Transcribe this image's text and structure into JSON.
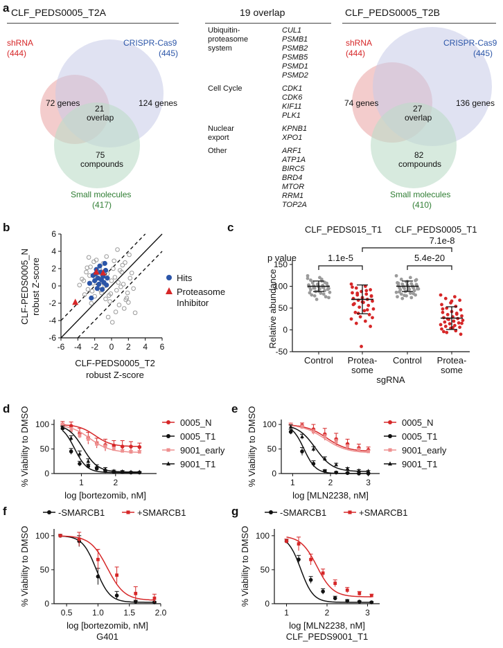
{
  "colors": {
    "red": "#d62728",
    "blue": "#2b55a8",
    "green": "#2e7d32",
    "grey": "#9a9a9a",
    "pink": "#e9a3a3",
    "lilac": "#c6cbe8",
    "mint": "#bcdcc8",
    "lightred": "#ee8f8f",
    "black": "#111111"
  },
  "panel_a": {
    "letter": "a",
    "venn1": {
      "title": "CLF_PEDS0005_T2A",
      "shrna_label": "shRNA",
      "shrna_count": "(444)",
      "crispr_label": "CRISPR-Cas9",
      "crispr_count": "(445)",
      "left_region": "72 genes",
      "right_region": "124 genes",
      "overlap_num": "21",
      "overlap_word": "overlap",
      "compound_num": "75",
      "compound_word": "compounds",
      "sm_label": "Small molecules",
      "sm_count": "(417)"
    },
    "venn2": {
      "title": "CLF_PEDS0005_T2B",
      "shrna_label": "shRNA",
      "shrna_count": "(444)",
      "crispr_label": "CRISPR-Cas9",
      "crispr_count": "(445)",
      "left_region": "74 genes",
      "right_region": "136 genes",
      "overlap_num": "27",
      "overlap_word": "overlap",
      "compound_num": "82",
      "compound_word": "compounds",
      "sm_label": "Small molecules",
      "sm_count": "(410)"
    },
    "overlap_table": {
      "title": "19 overlap",
      "groups": [
        {
          "category_lines": [
            "Ubiquitin-",
            "proteasome",
            "system"
          ],
          "genes": [
            "CUL1",
            "PSMB1",
            "PSMB2",
            "PSMB5",
            "PSMD1",
            "PSMD2"
          ]
        },
        {
          "category_lines": [
            "Cell Cycle"
          ],
          "genes": [
            "CDK1",
            "CDK6",
            "KIF11",
            "PLK1"
          ]
        },
        {
          "category_lines": [
            "Nuclear",
            "export"
          ],
          "genes": [
            "KPNB1",
            "XPO1"
          ]
        },
        {
          "category_lines": [
            "Other"
          ],
          "genes": [
            "ARF1",
            "ATP1A",
            "BIRC5",
            "BRD4",
            "MTOR",
            "RRM1",
            "TOP2A"
          ]
        }
      ]
    }
  },
  "chart_data": [
    {
      "id": "b",
      "type": "scatter",
      "letter": "b",
      "xlabel_line1": "CLF-PEDS0005_T2",
      "xlabel_line2": "robust Z-score",
      "ylabel_line1": "CLF-PEDS0005_N",
      "ylabel_line2": "robust Z-score",
      "xlim": [
        -6,
        6
      ],
      "ylim": [
        -6,
        6
      ],
      "xticks": [
        -6,
        -4,
        -2,
        0,
        2,
        4,
        6
      ],
      "yticks": [
        -6,
        -4,
        -2,
        0,
        2,
        4,
        6
      ],
      "legend": [
        {
          "name": "Hits",
          "marker": "circle"
        },
        {
          "name_lines": [
            "Proteasome",
            "Inhibitor"
          ],
          "marker": "triangle"
        }
      ],
      "diagonal": {
        "slope": 1,
        "offset": 2
      },
      "series": [
        {
          "name": "Other genes",
          "marker": "open-circle",
          "x": [
            -3.5,
            -3.0,
            -2.8,
            -2.5,
            -2.2,
            -2.0,
            -1.8,
            -1.5,
            -1.2,
            -1.0,
            -0.8,
            -0.5,
            -0.2,
            0.0,
            0.3,
            0.6,
            1.0,
            1.4,
            1.8,
            2.2,
            -3.8,
            -3.2,
            -2.6,
            -2.1,
            -1.6,
            -1.1,
            -0.6,
            -0.1,
            0.4,
            0.9,
            1.3,
            1.7,
            2.1,
            2.6,
            -2.9,
            -2.3,
            -1.4,
            -0.7,
            0.2,
            0.8,
            1.5,
            2.4,
            -3.3,
            -1.9,
            -0.3,
            1.1,
            2.8,
            -2.7,
            -1.3,
            0.5,
            1.9,
            -0.9,
            0.7,
            -2.4,
            1.6,
            -1.7,
            0.1,
            2.0,
            -0.4,
            1.2
          ],
          "y": [
            0.8,
            1.6,
            -0.4,
            2.2,
            0.3,
            -1.2,
            3.0,
            1.1,
            -0.8,
            2.6,
            0.0,
            1.4,
            -1.8,
            0.6,
            2.9,
            -0.5,
            1.8,
            0.2,
            -1.4,
            0.9,
            0.1,
            -1.0,
            1.2,
            2.8,
            -0.2,
            0.5,
            3.4,
            -0.9,
            1.0,
            -2.2,
            2.4,
            -1.6,
            3.6,
            -0.3,
            2.1,
            -0.6,
            1.9,
            -1.5,
            2.0,
            0.4,
            -2.6,
            1.5,
            0.6,
            1.0,
            -1.1,
            -0.1,
            -3.1,
            3.3,
            -0.5,
            -3.0,
            -0.8,
            0.3,
            4.2,
            -2.0,
            2.7,
            0.9,
            -4.2,
            -1.9,
            -3.6,
            1.6
          ]
        },
        {
          "name": "Hits",
          "marker": "circle",
          "x": [
            -2.6,
            -2.2,
            -2.0,
            -1.8,
            -1.6,
            -1.5,
            -1.3,
            -1.2,
            -1.0,
            -0.9,
            -0.7,
            -0.5,
            -1.7,
            -1.1,
            -0.6,
            -2.4,
            -1.4,
            -0.8,
            -1.9
          ],
          "y": [
            0.3,
            1.2,
            0.6,
            1.9,
            0.9,
            0.2,
            1.6,
            0.7,
            1.1,
            0.4,
            1.8,
            0.9,
            -0.3,
            -0.4,
            0.1,
            -1.4,
            2.3,
            2.6,
            1.4
          ]
        },
        {
          "name": "Proteasome Inhibitor",
          "marker": "triangle",
          "x": [
            -4.3,
            -1.8,
            -1.0
          ],
          "y": [
            -1.9,
            1.6,
            1.5
          ]
        }
      ]
    },
    {
      "id": "c",
      "type": "scatter",
      "letter": "c",
      "title_left": "CLF_PEDS015_T1",
      "title_right": "CLF_PEDS0005_T1",
      "xlabel": "sgRNA",
      "ylabel": "Relative abundance",
      "ylim": [
        -50,
        150
      ],
      "yticks": [
        -50,
        0,
        50,
        100,
        150
      ],
      "categories": [
        "Control",
        "Protea-some",
        "Control",
        "Protea-some"
      ],
      "category_lines": [
        [
          "Control"
        ],
        [
          "Protea-",
          "some"
        ],
        [
          "Control"
        ],
        [
          "Protea-",
          "some"
        ]
      ],
      "pvalue_label": "p value",
      "comparisons": [
        {
          "label": "1.1e-5",
          "from": 0,
          "to": 1
        },
        {
          "label": "7.1e-8",
          "from": 1,
          "to": 3
        },
        {
          "label": "5.4e-20",
          "from": 2,
          "to": 3
        }
      ],
      "series": [
        {
          "name": "Control 015",
          "color": "grey",
          "mean": 100,
          "sd": 12,
          "values": [
            118,
            112,
            108,
            106,
            104,
            103,
            102,
            101,
            100,
            99,
            98,
            97,
            96,
            95,
            94,
            92,
            90,
            88,
            86,
            84,
            80,
            76,
            70,
            124,
            116,
            110,
            107,
            105,
            100,
            98,
            96,
            93,
            89,
            85,
            82,
            78,
            74,
            120,
            114,
            109
          ]
        },
        {
          "name": "Proteasome 015",
          "color": "red",
          "mean": 70,
          "sd": 33,
          "values": [
            105,
            100,
            96,
            92,
            88,
            85,
            82,
            80,
            77,
            74,
            72,
            70,
            68,
            66,
            63,
            60,
            56,
            52,
            48,
            44,
            40,
            35,
            30,
            25,
            20,
            15,
            8,
            -38,
            98,
            90,
            84,
            78,
            64,
            58,
            46,
            38,
            28
          ]
        },
        {
          "name": "Control 0005",
          "color": "grey",
          "mean": 100,
          "sd": 12,
          "values": [
            124,
            120,
            116,
            113,
            110,
            108,
            106,
            105,
            104,
            103,
            102,
            101,
            100,
            99,
            98,
            97,
            96,
            95,
            94,
            93,
            92,
            90,
            88,
            86,
            84,
            82,
            80,
            78,
            76,
            74,
            72,
            115,
            111,
            107,
            100,
            98,
            94,
            91,
            87,
            83,
            79
          ]
        },
        {
          "name": "Proteasome 0005",
          "color": "red",
          "mean": 27,
          "sd": 26,
          "values": [
            80,
            76,
            72,
            68,
            62,
            58,
            54,
            50,
            46,
            42,
            40,
            38,
            35,
            32,
            30,
            28,
            26,
            24,
            22,
            20,
            18,
            16,
            14,
            12,
            10,
            8,
            6,
            4,
            2,
            -2,
            -6,
            -10,
            66,
            48,
            36,
            25,
            15,
            5,
            -4
          ]
        }
      ]
    },
    {
      "id": "d",
      "type": "line",
      "letter": "d",
      "xlabel": "log [bortezomib, nM]",
      "ylabel": "% Viability to DMSO",
      "xlim": [
        0.2,
        3.2
      ],
      "ylim": [
        0,
        110
      ],
      "xticks": [
        1,
        2
      ],
      "yticks": [
        0,
        50,
        100
      ],
      "x": [
        0.45,
        0.7,
        0.95,
        1.2,
        1.45,
        1.7,
        1.95,
        2.2,
        2.45,
        2.7
      ],
      "series": [
        {
          "name": "0005_N",
          "color": "red",
          "marker": "circle",
          "values": [
            100,
            97,
            82,
            72,
            62,
            58,
            57,
            55,
            55,
            54
          ],
          "err": [
            6,
            8,
            10,
            12,
            10,
            12,
            10,
            12,
            10,
            8
          ],
          "ic50": 1.4,
          "bottom": 55,
          "hill": 1.8
        },
        {
          "name": "0005_T1",
          "color": "black",
          "marker": "circle",
          "values": [
            92,
            45,
            20,
            15,
            10,
            5,
            3,
            3,
            2,
            2
          ],
          "err": [
            4,
            6,
            5,
            4,
            3,
            2,
            2,
            1,
            1,
            1
          ],
          "ic50": 0.8,
          "bottom": 2,
          "hill": 2.4
        },
        {
          "name": "9001_early",
          "color": "lightred",
          "marker": "square",
          "values": [
            100,
            88,
            77,
            70,
            60,
            55,
            50,
            46,
            44,
            44
          ],
          "err": [
            3,
            6,
            5,
            6,
            5,
            4,
            4,
            3,
            3,
            3
          ],
          "ic50": 1.25,
          "bottom": 43,
          "hill": 1.5
        },
        {
          "name": "9001_T1",
          "color": "black",
          "marker": "triangle",
          "values": [
            93,
            72,
            40,
            25,
            14,
            9,
            5,
            4,
            3,
            3
          ],
          "err": [
            4,
            5,
            6,
            5,
            4,
            3,
            2,
            2,
            1,
            1
          ],
          "ic50": 1.05,
          "bottom": 3,
          "hill": 2.0
        }
      ]
    },
    {
      "id": "e",
      "type": "line",
      "letter": "e",
      "xlabel": "log [MLN2238, nM]",
      "ylabel": "% Viability to DMSO",
      "xlim": [
        0.7,
        3.3
      ],
      "ylim": [
        0,
        110
      ],
      "xticks": [
        1,
        2,
        3
      ],
      "yticks": [
        0,
        50,
        100
      ],
      "x": [
        0.95,
        1.25,
        1.55,
        1.85,
        2.15,
        2.45,
        2.75,
        3.0
      ],
      "series": [
        {
          "name": "0005_N",
          "color": "red",
          "marker": "circle",
          "values": [
            100,
            98,
            90,
            80,
            70,
            60,
            52,
            48
          ],
          "err": [
            3,
            5,
            10,
            12,
            12,
            10,
            8,
            6
          ],
          "ic50": 1.9,
          "bottom": 45,
          "hill": 1.6
        },
        {
          "name": "0005_T1",
          "color": "black",
          "marker": "circle",
          "values": [
            85,
            45,
            20,
            5,
            2,
            1,
            0,
            0
          ],
          "err": [
            5,
            8,
            6,
            3,
            2,
            1,
            1,
            1
          ],
          "ic50": 1.3,
          "bottom": 0,
          "hill": 2.8
        },
        {
          "name": "9001_early",
          "color": "lightred",
          "marker": "square",
          "values": [
            100,
            95,
            85,
            75,
            65,
            55,
            48,
            45
          ],
          "err": [
            3,
            4,
            5,
            5,
            5,
            4,
            4,
            3
          ],
          "ic50": 1.85,
          "bottom": 42,
          "hill": 1.5
        },
        {
          "name": "9001_T1",
          "color": "black",
          "marker": "triangle",
          "values": [
            95,
            75,
            50,
            30,
            18,
            10,
            6,
            5
          ],
          "err": [
            4,
            5,
            5,
            4,
            3,
            2,
            2,
            1
          ],
          "ic50": 1.6,
          "bottom": 4,
          "hill": 1.9
        }
      ]
    },
    {
      "id": "f",
      "type": "line",
      "letter": "f",
      "xlabel_line1": "log [bortezomib, nM]",
      "xlabel_line2": "G401",
      "ylabel": "% Viability to DMSO",
      "xlim": [
        0.3,
        2.0
      ],
      "ylim": [
        0,
        110
      ],
      "xticks": [
        0.5,
        1.0,
        1.5,
        2.0
      ],
      "xtick_labels": [
        "0.5",
        "1.0",
        "1.5",
        "2.0"
      ],
      "yticks": [
        0,
        50,
        100
      ],
      "x": [
        0.4,
        0.7,
        1.0,
        1.3,
        1.6,
        1.9
      ],
      "series": [
        {
          "name": "-SMARCB1",
          "color": "black",
          "marker": "circle",
          "values": [
            100,
            92,
            40,
            12,
            3,
            2
          ],
          "err": [
            2,
            8,
            12,
            6,
            2,
            1
          ],
          "ic50": 0.97,
          "bottom": 2,
          "hill": 4.0
        },
        {
          "name": "+SMARCB1",
          "color": "red",
          "marker": "square",
          "values": [
            100,
            95,
            65,
            42,
            15,
            8
          ],
          "err": [
            2,
            10,
            15,
            12,
            10,
            6
          ],
          "ic50": 1.15,
          "bottom": 5,
          "hill": 3.2
        }
      ]
    },
    {
      "id": "g",
      "type": "line",
      "letter": "g",
      "xlabel_line1": "log [MLN2238, nM]",
      "xlabel_line2": "CLF_PEDS9001_T1",
      "ylabel": "% Viability to DMSO",
      "xlim": [
        0.7,
        3.3
      ],
      "ylim": [
        0,
        110
      ],
      "xticks": [
        1,
        2,
        3
      ],
      "yticks": [
        0,
        50,
        100
      ],
      "x": [
        1.0,
        1.3,
        1.6,
        1.9,
        2.2,
        2.5,
        2.8,
        3.1
      ],
      "series": [
        {
          "name": "-SMARCB1",
          "color": "black",
          "marker": "circle",
          "values": [
            92,
            65,
            35,
            18,
            8,
            4,
            3,
            2
          ],
          "err": [
            3,
            6,
            5,
            4,
            3,
            2,
            1,
            1
          ],
          "ic50": 1.35,
          "bottom": 2,
          "hill": 2.8
        },
        {
          "name": "+SMARCB1",
          "color": "red",
          "marker": "square",
          "values": [
            92,
            88,
            65,
            45,
            30,
            20,
            15,
            12
          ],
          "err": [
            3,
            10,
            8,
            6,
            5,
            4,
            3,
            2
          ],
          "ic50": 1.75,
          "bottom": 10,
          "hill": 2.2
        }
      ]
    }
  ]
}
